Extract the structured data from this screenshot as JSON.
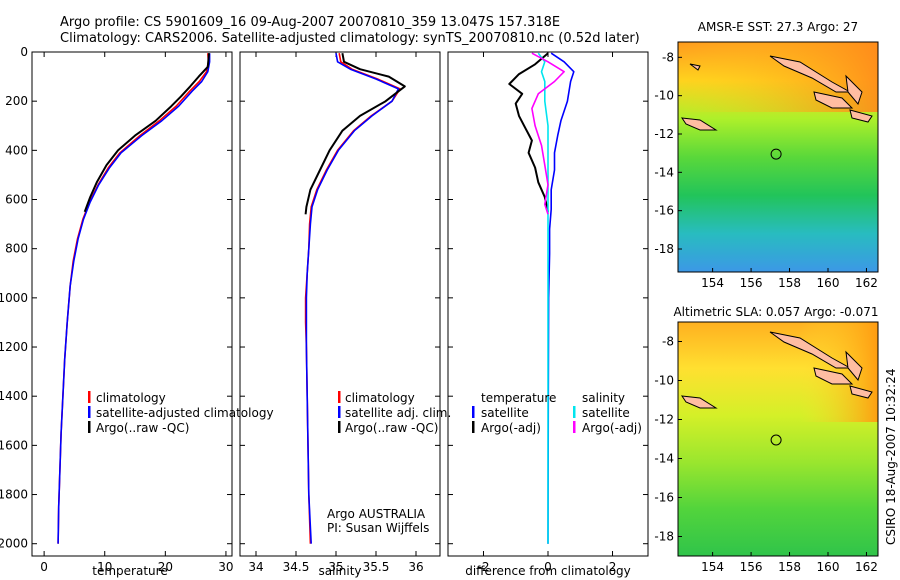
{
  "header": {
    "line1": "Argo profile: CS 5901609_16 09-Aug-2007 20070810_359 13.047S 157.318E",
    "line2": "Climatology: CARS2006. Satellite-adjusted climatology: synTS_20070810.nc (0.52d later)"
  },
  "side_label": "CSIRO 18-Aug-2007 10:32:24",
  "chart_data": [
    {
      "type": "line",
      "id": "temperature",
      "xlabel": "temperature",
      "xlim": [
        -2,
        31
      ],
      "ylim": [
        2050,
        0
      ],
      "xticks": [
        0,
        10,
        20,
        30
      ],
      "yticks": [
        0,
        200,
        400,
        600,
        800,
        1000,
        1200,
        1400,
        1600,
        1800,
        2000
      ],
      "legend": [
        "climatology",
        "satellite-adjusted climatology",
        "Argo(..raw -QC)"
      ],
      "series": [
        {
          "name": "climatology",
          "color": "#ff0000",
          "points": [
            [
              27.0,
              5
            ],
            [
              27.1,
              40
            ],
            [
              26.8,
              80
            ],
            [
              25.6,
              120
            ],
            [
              24.0,
              160
            ],
            [
              21.8,
              220
            ],
            [
              19.0,
              280
            ],
            [
              15.8,
              340
            ],
            [
              12.5,
              410
            ],
            [
              10.6,
              470
            ],
            [
              8.9,
              540
            ],
            [
              7.5,
              610
            ],
            [
              6.4,
              680
            ],
            [
              5.5,
              760
            ],
            [
              4.8,
              850
            ],
            [
              4.3,
              950
            ],
            [
              3.8,
              1100
            ],
            [
              3.4,
              1250
            ],
            [
              3.1,
              1400
            ],
            [
              2.8,
              1550
            ],
            [
              2.6,
              1700
            ],
            [
              2.4,
              1850
            ],
            [
              2.3,
              2000
            ]
          ]
        },
        {
          "name": "satellite-adjusted climatology",
          "color": "#0000ff",
          "points": [
            [
              27.3,
              5
            ],
            [
              27.3,
              40
            ],
            [
              27.0,
              80
            ],
            [
              26.0,
              120
            ],
            [
              24.4,
              160
            ],
            [
              22.2,
              220
            ],
            [
              19.4,
              280
            ],
            [
              16.1,
              340
            ],
            [
              12.7,
              410
            ],
            [
              10.8,
              470
            ],
            [
              9.0,
              540
            ],
            [
              7.6,
              610
            ],
            [
              6.5,
              680
            ],
            [
              5.6,
              760
            ],
            [
              4.9,
              850
            ],
            [
              4.3,
              950
            ],
            [
              3.8,
              1100
            ],
            [
              3.4,
              1250
            ],
            [
              3.1,
              1400
            ],
            [
              2.8,
              1550
            ],
            [
              2.6,
              1700
            ],
            [
              2.4,
              1850
            ],
            [
              2.3,
              2000
            ]
          ]
        },
        {
          "name": "Argo(..raw -QC)",
          "color": "#000000",
          "points": [
            [
              27.2,
              5
            ],
            [
              27.0,
              60
            ],
            [
              25.5,
              100
            ],
            [
              24.1,
              140
            ],
            [
              22.6,
              180
            ],
            [
              21.0,
              220
            ],
            [
              18.4,
              280
            ],
            [
              15.0,
              340
            ],
            [
              12.2,
              400
            ],
            [
              10.3,
              460
            ],
            [
              8.7,
              530
            ],
            [
              7.6,
              590
            ],
            [
              6.7,
              650
            ]
          ]
        }
      ]
    },
    {
      "type": "line",
      "id": "salinity",
      "xlabel": "salinity",
      "xlim": [
        33.8,
        36.3
      ],
      "ylim": [
        2050,
        0
      ],
      "xticks": [
        34,
        34.5,
        35,
        35.5,
        36
      ],
      "legend": [
        "climatology",
        "satellite adj. clim.",
        "Argo(..raw -QC)"
      ],
      "annotations": [
        "Argo AUSTRALIA",
        "PI: Susan Wijffels"
      ],
      "series": [
        {
          "name": "climatology",
          "color": "#ff0000",
          "points": [
            [
              35.04,
              5
            ],
            [
              35.06,
              40
            ],
            [
              35.2,
              70
            ],
            [
              35.52,
              110
            ],
            [
              35.8,
              150
            ],
            [
              35.7,
              200
            ],
            [
              35.44,
              260
            ],
            [
              35.22,
              320
            ],
            [
              35.02,
              400
            ],
            [
              34.88,
              480
            ],
            [
              34.76,
              560
            ],
            [
              34.69,
              630
            ],
            [
              34.67,
              700
            ],
            [
              34.66,
              800
            ],
            [
              34.64,
              900
            ],
            [
              34.62,
              1000
            ],
            [
              34.62,
              1100
            ],
            [
              34.63,
              1200
            ],
            [
              34.64,
              1400
            ],
            [
              34.65,
              1600
            ],
            [
              34.66,
              1800
            ],
            [
              34.68,
              2000
            ]
          ]
        },
        {
          "name": "satellite adj. clim.",
          "color": "#0000ff",
          "points": [
            [
              35.0,
              5
            ],
            [
              35.02,
              40
            ],
            [
              35.18,
              70
            ],
            [
              35.5,
              110
            ],
            [
              35.78,
              150
            ],
            [
              35.7,
              200
            ],
            [
              35.45,
              260
            ],
            [
              35.23,
              320
            ],
            [
              35.03,
              400
            ],
            [
              34.89,
              480
            ],
            [
              34.77,
              560
            ],
            [
              34.7,
              630
            ],
            [
              34.68,
              700
            ],
            [
              34.66,
              800
            ],
            [
              34.64,
              900
            ],
            [
              34.63,
              1000
            ],
            [
              34.63,
              1100
            ],
            [
              34.63,
              1200
            ],
            [
              34.64,
              1400
            ],
            [
              34.65,
              1600
            ],
            [
              34.66,
              1800
            ],
            [
              34.69,
              2000
            ]
          ]
        },
        {
          "name": "Argo(..raw -QC)",
          "color": "#000000",
          "points": [
            [
              35.08,
              5
            ],
            [
              35.1,
              40
            ],
            [
              35.3,
              70
            ],
            [
              35.66,
              100
            ],
            [
              35.86,
              140
            ],
            [
              35.62,
              200
            ],
            [
              35.3,
              260
            ],
            [
              35.08,
              320
            ],
            [
              34.92,
              400
            ],
            [
              34.8,
              480
            ],
            [
              34.68,
              560
            ],
            [
              34.63,
              630
            ],
            [
              34.62,
              660
            ]
          ]
        }
      ]
    },
    {
      "type": "line",
      "id": "difference",
      "xlabel": "difference from climatology",
      "xlim": [
        -3.1,
        3.1
      ],
      "ylim": [
        2050,
        0
      ],
      "xticks": [
        -2,
        0,
        2
      ],
      "legend": [
        "temperature",
        "satellite",
        "Argo(-adj)",
        "salinity",
        "satellite",
        "Argo(-adj)"
      ],
      "series": [
        {
          "name": "temperature satellite",
          "color": "#0000ff",
          "points": [
            [
              0.1,
              5
            ],
            [
              0.5,
              40
            ],
            [
              0.8,
              80
            ],
            [
              0.7,
              120
            ],
            [
              0.6,
              200
            ],
            [
              0.4,
              280
            ],
            [
              0.3,
              340
            ],
            [
              0.2,
              410
            ],
            [
              0.2,
              480
            ],
            [
              0.1,
              560
            ],
            [
              0.1,
              640
            ],
            [
              0.05,
              720
            ],
            [
              0.05,
              820
            ],
            [
              0.02,
              1000
            ],
            [
              0.01,
              1400
            ],
            [
              0.0,
              2000
            ]
          ]
        },
        {
          "name": "temperature Argo(-adj)",
          "color": "#000000",
          "points": [
            [
              0.0,
              5
            ],
            [
              -0.4,
              50
            ],
            [
              -0.9,
              90
            ],
            [
              -1.2,
              130
            ],
            [
              -0.8,
              170
            ],
            [
              -1.0,
              210
            ],
            [
              -0.9,
              260
            ],
            [
              -0.7,
              310
            ],
            [
              -0.5,
              360
            ],
            [
              -0.6,
              410
            ],
            [
              -0.4,
              470
            ],
            [
              -0.3,
              530
            ],
            [
              -0.1,
              590
            ],
            [
              0.0,
              650
            ]
          ]
        },
        {
          "name": "salinity satellite",
          "color": "#00e5ee",
          "points": [
            [
              -0.3,
              5
            ],
            [
              -0.1,
              40
            ],
            [
              -0.2,
              80
            ],
            [
              -0.1,
              120
            ],
            [
              -0.1,
              200
            ],
            [
              0.0,
              300
            ],
            [
              0.0,
              500
            ],
            [
              0.0,
              800
            ],
            [
              0.0,
              1200
            ],
            [
              0.0,
              1600
            ],
            [
              0.0,
              2000
            ]
          ]
        },
        {
          "name": "salinity Argo(-adj)",
          "color": "#ff00ff",
          "points": [
            [
              -0.5,
              5
            ],
            [
              0.0,
              40
            ],
            [
              0.5,
              80
            ],
            [
              0.2,
              120
            ],
            [
              -0.3,
              170
            ],
            [
              -0.5,
              230
            ],
            [
              -0.4,
              300
            ],
            [
              -0.2,
              380
            ],
            [
              -0.1,
              460
            ],
            [
              0.0,
              540
            ],
            [
              -0.1,
              620
            ],
            [
              0.0,
              660
            ]
          ]
        }
      ]
    },
    {
      "type": "heatmap",
      "id": "sst_map",
      "title": "AMSR-E SST: 27.3 Argo: 27",
      "xlim": [
        152.2,
        162.6
      ],
      "ylim": [
        -19.2,
        -7.2
      ],
      "xticks": [
        154,
        156,
        158,
        160,
        162
      ],
      "yticks": [
        -8,
        -10,
        -12,
        -14,
        -16,
        -18
      ],
      "marker": [
        157.3,
        -13.05
      ],
      "bands": [
        "#ff9a1e",
        "#ffd21e",
        "#aef02a",
        "#5ad83a",
        "#22c45a",
        "#28bcc0",
        "#3c98e6"
      ]
    },
    {
      "type": "heatmap",
      "id": "sla_map",
      "title": "Altimetric SLA: 0.057 Argo: -0.071",
      "xlim": [
        152.2,
        162.6
      ],
      "ylim": [
        -19.0,
        -7.0
      ],
      "xticks": [
        154,
        156,
        158,
        160,
        162
      ],
      "yticks": [
        -8,
        -10,
        -12,
        -14,
        -16,
        -18
      ],
      "marker": [
        157.3,
        -13.05
      ],
      "bands": [
        "#ffb020",
        "#ffe030",
        "#d4f028",
        "#9ae62e",
        "#52d43c",
        "#30c44a"
      ]
    }
  ]
}
